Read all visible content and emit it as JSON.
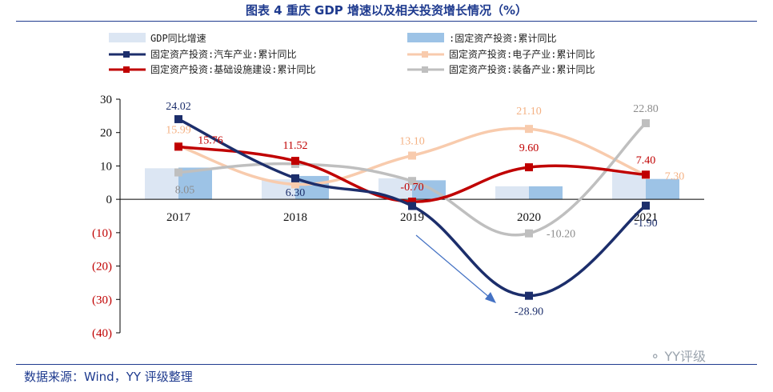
{
  "title": "图表 4 重庆 GDP 增速以及相关投资增长情况（%）",
  "source": "数据来源：Wind，YY 评级整理",
  "watermark": "YY评级",
  "colors": {
    "title": "#1f3b8f",
    "gdp": "#dce6f3",
    "fixed_invest": "#9dc3e6",
    "auto": "#1c2e6b",
    "electronics": "#f8cbad",
    "infrastructure": "#c00000",
    "equipment": "#bfbfbf",
    "negative_tick": "#c00000",
    "arrow": "#4472c4"
  },
  "chart_data": {
    "type": "bar+line",
    "categories": [
      "2017",
      "2018",
      "2019",
      "2020",
      "2021"
    ],
    "ylim": [
      -40,
      30
    ],
    "yticks": [
      30,
      20,
      10,
      0,
      -10,
      -20,
      -30,
      -40
    ],
    "ytick_labels": [
      "30",
      "20",
      "10",
      "0",
      "(10)",
      "(20)",
      "(30)",
      "(40)"
    ],
    "bar_series": [
      {
        "key": "gdp",
        "name": "GDP同比增速",
        "values": [
          9.3,
          6.0,
          6.3,
          3.9,
          8.3
        ]
      },
      {
        "key": "fixed_invest",
        "name": ":固定资产投资:累计同比",
        "values": [
          9.5,
          7.0,
          5.7,
          3.9,
          6.1
        ]
      }
    ],
    "line_series": [
      {
        "key": "auto",
        "name": "固定资产投资:汽车产业:累计同比",
        "values": [
          24.02,
          6.3,
          -2.0,
          -28.9,
          -1.9
        ]
      },
      {
        "key": "electronics",
        "name": "固定资产投资:电子产业:累计同比",
        "values": [
          15.99,
          4.5,
          13.1,
          21.1,
          7.3
        ]
      },
      {
        "key": "infrastructure",
        "name": "固定资产投资:基础设施建设:累计同比",
        "values": [
          15.76,
          11.52,
          -0.7,
          9.6,
          7.4
        ]
      },
      {
        "key": "equipment",
        "name": "固定资产投资:装备产业:累计同比",
        "values": [
          8.05,
          10.6,
          5.5,
          -10.2,
          22.8
        ]
      }
    ],
    "data_labels": [
      {
        "series": "auto",
        "index": 0,
        "text": "24.02"
      },
      {
        "series": "auto",
        "index": 1,
        "text": "6.30"
      },
      {
        "series": "auto",
        "index": 3,
        "text": "-28.90"
      },
      {
        "series": "auto",
        "index": 4,
        "text": "-1.90"
      },
      {
        "series": "electronics",
        "index": 0,
        "text": "15.99"
      },
      {
        "series": "electronics",
        "index": 2,
        "text": "13.10"
      },
      {
        "series": "electronics",
        "index": 3,
        "text": "21.10"
      },
      {
        "series": "electronics",
        "index": 4,
        "text": "7.30"
      },
      {
        "series": "infrastructure",
        "index": 0,
        "text": "15.76"
      },
      {
        "series": "infrastructure",
        "index": 1,
        "text": "11.52"
      },
      {
        "series": "infrastructure",
        "index": 2,
        "text": "-0.70"
      },
      {
        "series": "infrastructure",
        "index": 3,
        "text": "9.60"
      },
      {
        "series": "infrastructure",
        "index": 4,
        "text": "7.40"
      },
      {
        "series": "equipment",
        "index": 0,
        "text": "8.05"
      },
      {
        "series": "equipment",
        "index": 3,
        "text": "-10.20"
      },
      {
        "series": "equipment",
        "index": 4,
        "text": "22.80"
      }
    ]
  }
}
